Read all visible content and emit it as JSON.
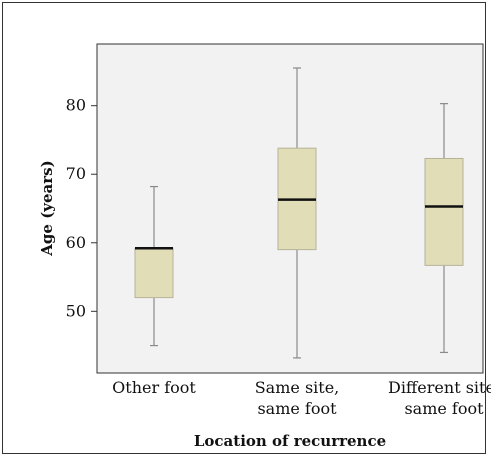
{
  "chart_data": {
    "type": "boxplot",
    "title": "",
    "xlabel": "Location of recurrence",
    "ylabel": "Age (years)",
    "ylim": [
      41,
      89
    ],
    "yticks": [
      50,
      60,
      70,
      80
    ],
    "grid": false,
    "categories": [
      [
        "Other foot"
      ],
      [
        "Same site,",
        "same foot"
      ],
      [
        "Different site,",
        "same foot"
      ]
    ],
    "boxes": [
      {
        "min": 45,
        "q1": 52,
        "median": 59.2,
        "q3": 59.2,
        "max": 68.2
      },
      {
        "min": 43.2,
        "q1": 59,
        "median": 66.3,
        "q3": 73.8,
        "max": 85.5
      },
      {
        "min": 44,
        "q1": 56.7,
        "median": 65.3,
        "q3": 72.3,
        "max": 80.3
      }
    ],
    "colors": {
      "plot_bg": "#f2f2f2",
      "box_fill": "#e1ddb6",
      "box_stroke": "#b7b39a",
      "median": "#111111",
      "whisker": "#8a8a8a"
    }
  }
}
